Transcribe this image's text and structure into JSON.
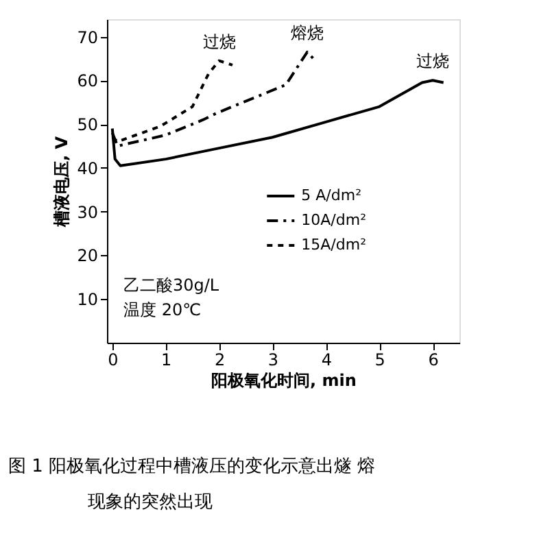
{
  "chart_data": {
    "type": "line",
    "xlabel": "阳极氧化时间, min",
    "ylabel": "槽液电压, V",
    "xlim": [
      -0.1,
      6.5
    ],
    "ylim": [
      0,
      74
    ],
    "xticks": [
      0,
      1,
      2,
      3,
      4,
      5,
      6
    ],
    "yticks": [
      10,
      20,
      30,
      40,
      50,
      60,
      70
    ],
    "grid": false,
    "legend": "bottom",
    "marker": "none",
    "series": [
      {
        "name": "5 A/dm²",
        "color": "#000000",
        "line_style": "solid",
        "x": [
          0,
          0.05,
          0.15,
          1,
          2,
          3,
          4,
          5,
          5.8,
          6,
          6.2
        ],
        "values": [
          49,
          42,
          40.5,
          42,
          44.5,
          47,
          50.5,
          54,
          59.5,
          60,
          59.5
        ]
      },
      {
        "name": "10A/dm²",
        "color": "#000000",
        "line_style": "dashdot",
        "x": [
          0,
          0.1,
          1,
          1.7,
          1.95,
          3.25,
          3.65,
          3.8
        ],
        "values": [
          48,
          45,
          47.5,
          51,
          52.5,
          59,
          66.5,
          64.5
        ]
      },
      {
        "name": "15A/dm²",
        "color": "#000000",
        "line_style": "dashed",
        "x": [
          0,
          0.1,
          0.9,
          1.5,
          1.8,
          2.0,
          2.25
        ],
        "values": [
          47,
          46,
          49.5,
          54,
          61.5,
          64.5,
          63.5
        ]
      }
    ],
    "annotations": [
      {
        "text": "过烧",
        "x": 2.0,
        "y": 64.5
      },
      {
        "text": "熔烧",
        "x": 3.65,
        "y": 66.5
      },
      {
        "text": "过烧",
        "x": 6.0,
        "y": 60
      },
      "乙二酸30g/L",
      "温度  20℃",
      "图 1    阳极氧化过程中槽液压的变化示意出燧 熔",
      "现象的突然出现"
    ]
  }
}
